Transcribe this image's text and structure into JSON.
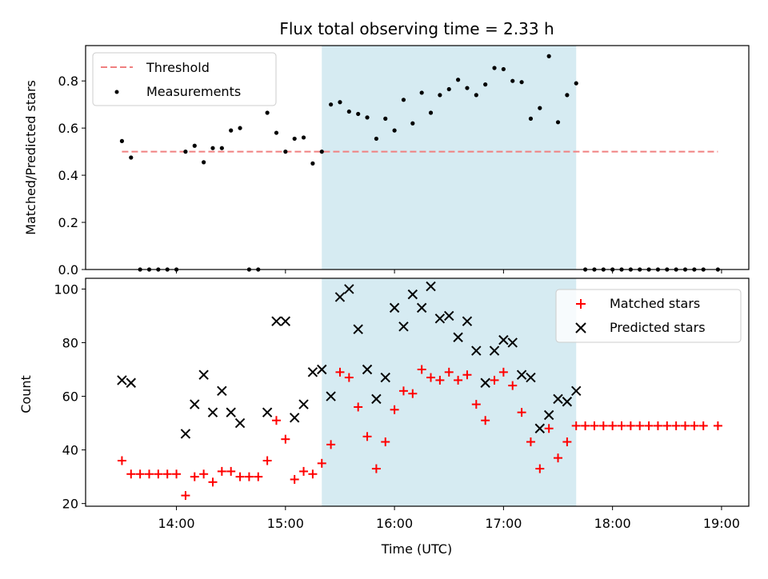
{
  "chart_data": [
    {
      "type": "scatter",
      "title": "Flux total observing time = 2.33 h",
      "xlabel": "",
      "ylabel": "Matched/Predicted stars",
      "ylim": [
        0,
        0.95
      ],
      "yticks": [
        "0.0",
        "0.2",
        "0.4",
        "0.6",
        "0.8"
      ],
      "legend": {
        "placement": "top-left",
        "threshold_label": "Threshold",
        "measurements_label": "Measurements"
      },
      "threshold": {
        "value": 0.5,
        "x_start": "13:30",
        "x_end": "18:58",
        "color": "#f08080"
      },
      "highlight_span": {
        "start": "15:20",
        "end": "17:40",
        "color": "#add8e6"
      },
      "series": [
        {
          "name": "Measurements",
          "color": "#000000",
          "points": [
            [
              "13:30",
              0.545
            ],
            [
              "13:35",
              0.475
            ],
            [
              "13:40",
              0
            ],
            [
              "13:45",
              0
            ],
            [
              "13:50",
              0
            ],
            [
              "13:55",
              0
            ],
            [
              "14:00",
              0
            ],
            [
              "14:05",
              0.5
            ],
            [
              "14:10",
              0.525
            ],
            [
              "14:15",
              0.455
            ],
            [
              "14:20",
              0.515
            ],
            [
              "14:25",
              0.515
            ],
            [
              "14:30",
              0.59
            ],
            [
              "14:35",
              0.6
            ],
            [
              "14:40",
              0
            ],
            [
              "14:45",
              0
            ],
            [
              "14:50",
              0.665
            ],
            [
              "14:55",
              0.58
            ],
            [
              "15:00",
              0.5
            ],
            [
              "15:05",
              0.555
            ],
            [
              "15:10",
              0.56
            ],
            [
              "15:15",
              0.45
            ],
            [
              "15:20",
              0.5
            ],
            [
              "15:25",
              0.7
            ],
            [
              "15:30",
              0.71
            ],
            [
              "15:35",
              0.67
            ],
            [
              "15:40",
              0.66
            ],
            [
              "15:45",
              0.645
            ],
            [
              "15:50",
              0.555
            ],
            [
              "15:55",
              0.64
            ],
            [
              "16:00",
              0.59
            ],
            [
              "16:05",
              0.72
            ],
            [
              "16:10",
              0.62
            ],
            [
              "16:15",
              0.75
            ],
            [
              "16:20",
              0.665
            ],
            [
              "16:25",
              0.74
            ],
            [
              "16:30",
              0.765
            ],
            [
              "16:35",
              0.805
            ],
            [
              "16:40",
              0.77
            ],
            [
              "16:45",
              0.74
            ],
            [
              "16:50",
              0.785
            ],
            [
              "16:55",
              0.855
            ],
            [
              "17:00",
              0.85
            ],
            [
              "17:05",
              0.8
            ],
            [
              "17:10",
              0.795
            ],
            [
              "17:15",
              0.64
            ],
            [
              "17:20",
              0.685
            ],
            [
              "17:25",
              0.905
            ],
            [
              "17:30",
              0.625
            ],
            [
              "17:35",
              0.74
            ],
            [
              "17:40",
              0.79
            ],
            [
              "17:45",
              0
            ],
            [
              "17:50",
              0
            ],
            [
              "17:55",
              0
            ],
            [
              "18:00",
              0
            ],
            [
              "18:05",
              0
            ],
            [
              "18:10",
              0
            ],
            [
              "18:15",
              0
            ],
            [
              "18:20",
              0
            ],
            [
              "18:25",
              0
            ],
            [
              "18:30",
              0
            ],
            [
              "18:35",
              0
            ],
            [
              "18:40",
              0
            ],
            [
              "18:45",
              0
            ],
            [
              "18:50",
              0
            ],
            [
              "18:58",
              0
            ]
          ]
        }
      ]
    },
    {
      "type": "scatter",
      "xlabel": "Time (UTC)",
      "ylabel": "Count",
      "ylim": [
        19,
        104
      ],
      "yticks": [
        "20",
        "40",
        "60",
        "80",
        "100"
      ],
      "xlim": [
        "13:10",
        "19:15"
      ],
      "xticks": [
        "14:00",
        "15:00",
        "16:00",
        "17:00",
        "18:00",
        "19:00"
      ],
      "legend": {
        "placement": "top-right"
      },
      "highlight_span": {
        "start": "15:20",
        "end": "17:40",
        "color": "#add8e6"
      },
      "series": [
        {
          "name": "Matched stars",
          "marker": "plus",
          "color": "#ff0000",
          "points": [
            [
              "13:30",
              36
            ],
            [
              "13:35",
              31
            ],
            [
              "13:40",
              31
            ],
            [
              "13:45",
              31
            ],
            [
              "13:50",
              31
            ],
            [
              "13:55",
              31
            ],
            [
              "14:00",
              31
            ],
            [
              "14:05",
              23
            ],
            [
              "14:10",
              30
            ],
            [
              "14:15",
              31
            ],
            [
              "14:20",
              28
            ],
            [
              "14:25",
              32
            ],
            [
              "14:30",
              32
            ],
            [
              "14:35",
              30
            ],
            [
              "14:40",
              30
            ],
            [
              "14:45",
              30
            ],
            [
              "14:50",
              36
            ],
            [
              "14:55",
              51
            ],
            [
              "15:00",
              44
            ],
            [
              "15:05",
              29
            ],
            [
              "15:10",
              32
            ],
            [
              "15:15",
              31
            ],
            [
              "15:20",
              35
            ],
            [
              "15:25",
              42
            ],
            [
              "15:30",
              69
            ],
            [
              "15:35",
              67
            ],
            [
              "15:40",
              56
            ],
            [
              "15:45",
              45
            ],
            [
              "15:50",
              33
            ],
            [
              "15:55",
              43
            ],
            [
              "16:00",
              55
            ],
            [
              "16:05",
              62
            ],
            [
              "16:10",
              61
            ],
            [
              "16:15",
              70
            ],
            [
              "16:20",
              67
            ],
            [
              "16:25",
              66
            ],
            [
              "16:30",
              69
            ],
            [
              "16:35",
              66
            ],
            [
              "16:40",
              68
            ],
            [
              "16:45",
              57
            ],
            [
              "16:50",
              51
            ],
            [
              "16:55",
              66
            ],
            [
              "17:00",
              69
            ],
            [
              "17:05",
              64
            ],
            [
              "17:10",
              54
            ],
            [
              "17:15",
              43
            ],
            [
              "17:20",
              33
            ],
            [
              "17:25",
              48
            ],
            [
              "17:30",
              37
            ],
            [
              "17:35",
              43
            ],
            [
              "17:40",
              49
            ],
            [
              "17:45",
              49
            ],
            [
              "17:50",
              49
            ],
            [
              "17:55",
              49
            ],
            [
              "18:00",
              49
            ],
            [
              "18:05",
              49
            ],
            [
              "18:10",
              49
            ],
            [
              "18:15",
              49
            ],
            [
              "18:20",
              49
            ],
            [
              "18:25",
              49
            ],
            [
              "18:30",
              49
            ],
            [
              "18:35",
              49
            ],
            [
              "18:40",
              49
            ],
            [
              "18:45",
              49
            ],
            [
              "18:50",
              49
            ],
            [
              "18:58",
              49
            ]
          ]
        },
        {
          "name": "Predicted stars",
          "marker": "x",
          "color": "#000000",
          "points": [
            [
              "13:30",
              66
            ],
            [
              "13:35",
              65
            ],
            [
              "14:05",
              46
            ],
            [
              "14:10",
              57
            ],
            [
              "14:15",
              68
            ],
            [
              "14:20",
              54
            ],
            [
              "14:25",
              62
            ],
            [
              "14:30",
              54
            ],
            [
              "14:35",
              50
            ],
            [
              "14:50",
              54
            ],
            [
              "14:55",
              88
            ],
            [
              "15:00",
              88
            ],
            [
              "15:05",
              52
            ],
            [
              "15:10",
              57
            ],
            [
              "15:15",
              69
            ],
            [
              "15:20",
              70
            ],
            [
              "15:25",
              60
            ],
            [
              "15:30",
              97
            ],
            [
              "15:35",
              100
            ],
            [
              "15:40",
              85
            ],
            [
              "15:45",
              70
            ],
            [
              "15:50",
              59
            ],
            [
              "15:55",
              67
            ],
            [
              "16:00",
              93
            ],
            [
              "16:05",
              86
            ],
            [
              "16:10",
              98
            ],
            [
              "16:15",
              93
            ],
            [
              "16:20",
              101
            ],
            [
              "16:25",
              89
            ],
            [
              "16:30",
              90
            ],
            [
              "16:35",
              82
            ],
            [
              "16:40",
              88
            ],
            [
              "16:45",
              77
            ],
            [
              "16:50",
              65
            ],
            [
              "16:55",
              77
            ],
            [
              "17:00",
              81
            ],
            [
              "17:05",
              80
            ],
            [
              "17:10",
              68
            ],
            [
              "17:15",
              67
            ],
            [
              "17:20",
              48
            ],
            [
              "17:25",
              53
            ],
            [
              "17:30",
              59
            ],
            [
              "17:35",
              58
            ],
            [
              "17:40",
              62
            ]
          ]
        }
      ]
    }
  ]
}
